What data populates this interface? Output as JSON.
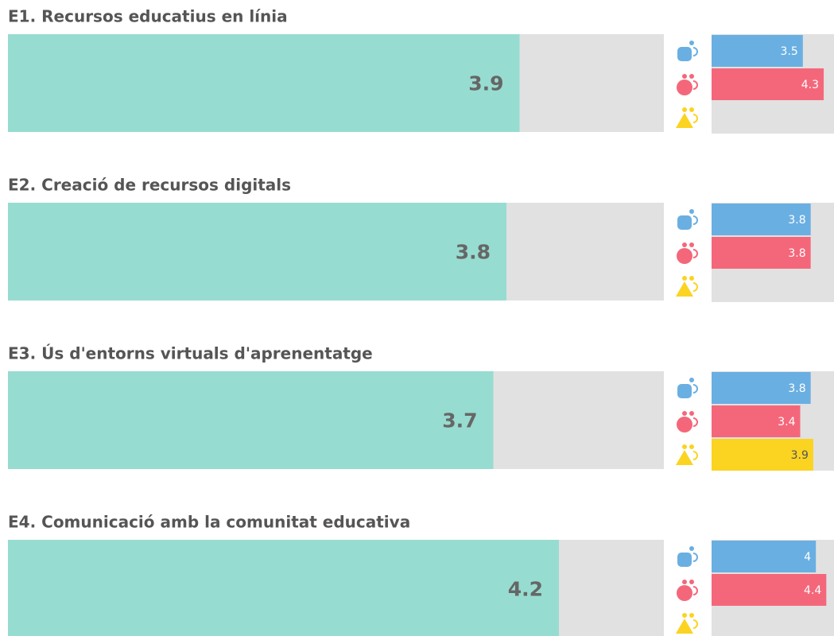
{
  "chart_data": [
    {
      "type": "bar",
      "title": "E1. Recursos educatius en línia",
      "value": 3.9,
      "color": "#97dcd0",
      "xlim": [
        0,
        5
      ],
      "group_xlim": [
        0,
        5
      ],
      "group_colors": [
        "#6aafe2",
        "#f4677a",
        "#fbd321"
      ],
      "group_values": [
        3.5,
        4.3,
        null
      ]
    },
    {
      "type": "bar",
      "title": "E2. Creació de recursos digitals",
      "value": 3.8,
      "color": "#97dcd0",
      "xlim": [
        0,
        5
      ],
      "group_xlim": [
        0,
        5
      ],
      "group_colors": [
        "#6aafe2",
        "#f4677a",
        "#fbd321"
      ],
      "group_values": [
        3.8,
        3.8,
        null
      ]
    },
    {
      "type": "bar",
      "title": "E3. Ús d'entorns virtuals d'aprenentatge",
      "value": 3.7,
      "color": "#97dcd0",
      "xlim": [
        0,
        5
      ],
      "group_xlim": [
        0,
        5
      ],
      "group_colors": [
        "#6aafe2",
        "#f4677a",
        "#fbd321"
      ],
      "group_values": [
        3.8,
        3.4,
        3.9
      ]
    },
    {
      "type": "bar",
      "title": "E4. Comunicació amb la comunitat educativa",
      "value": 4.2,
      "color": "#97dcd0",
      "xlim": [
        0,
        5
      ],
      "group_xlim": [
        0,
        5
      ],
      "group_colors": [
        "#6aafe2",
        "#f4677a",
        "#fbd321"
      ],
      "group_values": [
        4,
        4.4,
        null
      ]
    }
  ]
}
